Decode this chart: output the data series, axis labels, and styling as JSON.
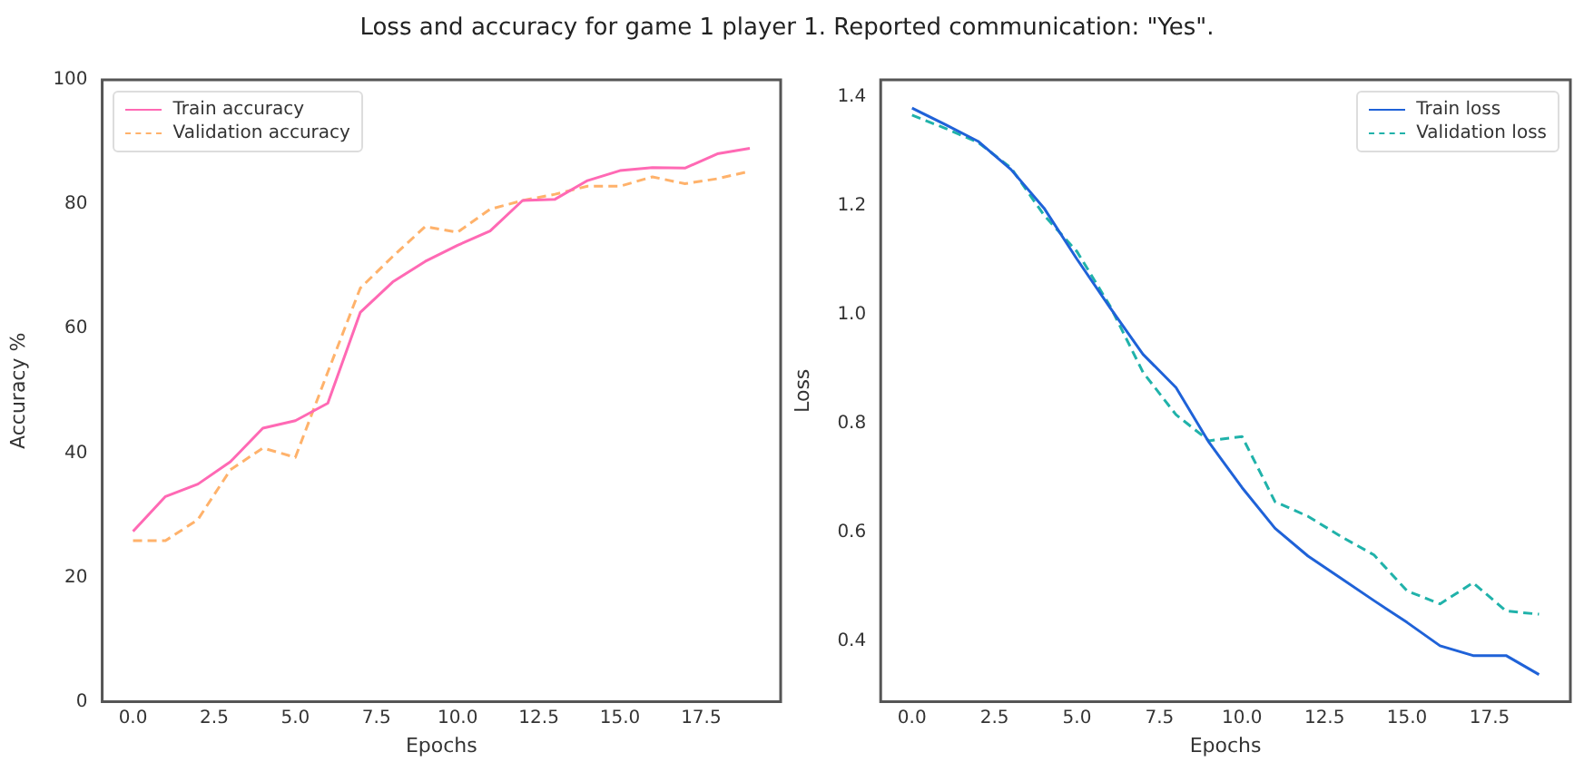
{
  "chart_data": [
    {
      "type": "line",
      "title": "Loss and accuracy for game 1 player 1. Reported communication: \"Yes\".",
      "xlabel": "Epochs",
      "ylabel": "Accuracy %",
      "x": [
        0,
        1,
        2,
        3,
        4,
        5,
        6,
        7,
        8,
        9,
        10,
        11,
        12,
        13,
        14,
        15,
        16,
        17,
        18,
        19
      ],
      "xlim": [
        -0.95,
        19.95
      ],
      "xticks": [
        {
          "value": 0,
          "label": "0.0"
        },
        {
          "value": 2.5,
          "label": "2.5"
        },
        {
          "value": 5,
          "label": "5.0"
        },
        {
          "value": 7.5,
          "label": "7.5"
        },
        {
          "value": 10,
          "label": "10.0"
        },
        {
          "value": 12.5,
          "label": "12.5"
        },
        {
          "value": 15,
          "label": "15.0"
        },
        {
          "value": 17.5,
          "label": "17.5"
        }
      ],
      "ylim": [
        0,
        100
      ],
      "yticks": [
        0,
        20,
        40,
        60,
        80,
        100
      ],
      "grid": false,
      "legend": "top left",
      "series": [
        {
          "name": "Train accuracy",
          "color": "#ff69b4",
          "line_style": "solid",
          "values": [
            27.4,
            33,
            35,
            38.6,
            44,
            45.2,
            48,
            62.6,
            67.5,
            70.8,
            73.4,
            75.7,
            80.6,
            80.8,
            83.8,
            85.4,
            85.9,
            85.8,
            88.1,
            89
          ]
        },
        {
          "name": "Validation accuracy",
          "color": "#ffb26b",
          "line_style": "dashed",
          "values": [
            25.9,
            25.9,
            29.3,
            37.3,
            40.8,
            39.3,
            53,
            66.5,
            71.6,
            76.4,
            75.5,
            79.2,
            80.6,
            81.6,
            82.9,
            82.9,
            84.4,
            83.3,
            84.1,
            85.3
          ]
        }
      ]
    },
    {
      "type": "line",
      "xlabel": "Epochs",
      "ylabel": "Loss",
      "x": [
        0,
        1,
        2,
        3,
        4,
        5,
        6,
        7,
        8,
        9,
        10,
        11,
        12,
        13,
        14,
        15,
        16,
        17,
        18,
        19
      ],
      "xlim": [
        -0.95,
        19.95
      ],
      "xticks": [
        {
          "value": 0,
          "label": "0.0"
        },
        {
          "value": 2.5,
          "label": "2.5"
        },
        {
          "value": 5,
          "label": "5.0"
        },
        {
          "value": 7.5,
          "label": "7.5"
        },
        {
          "value": 10,
          "label": "10.0"
        },
        {
          "value": 12.5,
          "label": "12.5"
        },
        {
          "value": 15,
          "label": "15.0"
        },
        {
          "value": 17.5,
          "label": "17.5"
        }
      ],
      "ylim": [
        0.288,
        1.432
      ],
      "yticks": [
        {
          "value": 0.4,
          "label": "0.4"
        },
        {
          "value": 0.6,
          "label": "0.6"
        },
        {
          "value": 0.8,
          "label": "0.8"
        },
        {
          "value": 1.0,
          "label": "1.0"
        },
        {
          "value": 1.2,
          "label": "1.2"
        },
        {
          "value": 1.4,
          "label": "1.4"
        }
      ],
      "grid": false,
      "legend": "top right",
      "series": [
        {
          "name": "Train loss",
          "color": "#1f62d8",
          "line_style": "solid",
          "values": [
            1.38,
            1.35,
            1.319,
            1.267,
            1.196,
            1.102,
            1.013,
            0.927,
            0.866,
            0.765,
            0.682,
            0.607,
            0.556,
            0.515,
            0.474,
            0.434,
            0.391,
            0.373,
            0.373,
            0.338
          ]
        },
        {
          "name": "Validation loss",
          "color": "#20b2aa",
          "line_style": "dashed",
          "values": [
            1.367,
            1.343,
            1.317,
            1.27,
            1.183,
            1.116,
            1.016,
            0.894,
            0.816,
            0.768,
            0.776,
            0.656,
            0.629,
            0.592,
            0.558,
            0.492,
            0.468,
            0.507,
            0.455,
            0.449
          ]
        }
      ]
    }
  ]
}
